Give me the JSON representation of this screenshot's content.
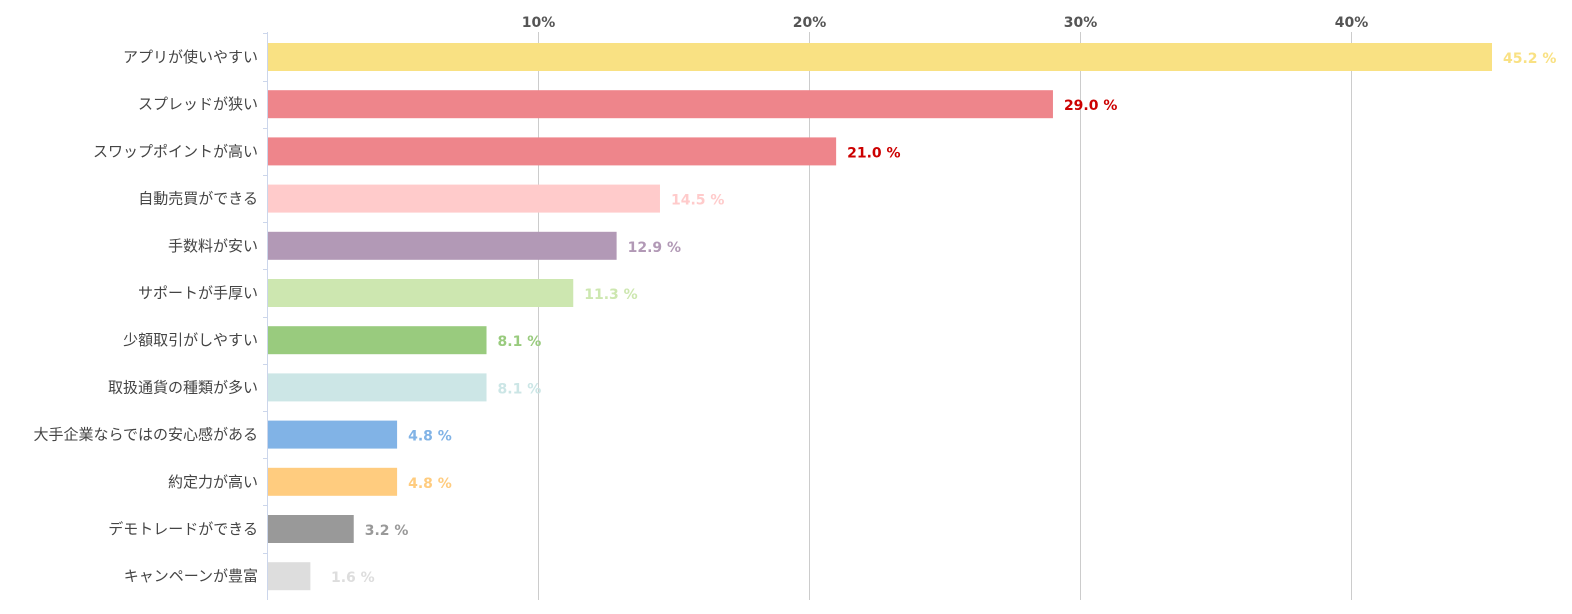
{
  "chart_data": {
    "type": "bar",
    "orientation": "horizontal",
    "title": "",
    "xlabel": "",
    "ylabel": "",
    "xlim": [
      0,
      45.2
    ],
    "grid": true,
    "x_ticks": [
      {
        "value": 10,
        "label": "10%"
      },
      {
        "value": 20,
        "label": "20%"
      },
      {
        "value": 30,
        "label": "30%"
      },
      {
        "value": 40,
        "label": "40%"
      }
    ],
    "categories": [
      "アプリが使いやすい",
      "スプレッドが狭い",
      "スワップポイントが高い",
      "自動売買ができる",
      "手数料が安い",
      "サポートが手厚い",
      "少額取引がしやすい",
      "取扱通貨の種類が多い",
      "大手企業ならではの安心感がある",
      "約定力が高い",
      "デモトレードができる",
      "キャンペーンが豊富"
    ],
    "values": [
      45.2,
      29.0,
      21.0,
      14.5,
      12.9,
      11.3,
      8.1,
      8.1,
      4.8,
      4.8,
      3.2,
      1.6
    ],
    "value_labels": [
      "45.2 %",
      "29.0 %",
      "21.0 %",
      "14.5 %",
      "12.9 %",
      "11.3 %",
      "8.1 %",
      "8.1 %",
      "4.8 %",
      "4.8 %",
      "3.2 %",
      "1.6 %"
    ],
    "bar_colors": [
      "#f9e183",
      "#ee858b",
      "#ee858b",
      "#ffcbcb",
      "#b299b6",
      "#cde7b0",
      "#99cb7e",
      "#cce6e6",
      "#81b3e6",
      "#ffcc7f",
      "#999999",
      "#dddddd"
    ],
    "label_colors": [
      "#f9e183",
      "#cc0000",
      "#cc0000",
      "#ffcbcb",
      "#b299b6",
      "#cde7b0",
      "#99cb7e",
      "#cce6e6",
      "#81b3e6",
      "#ffcc7f",
      "#999999",
      "#dddddd"
    ],
    "grid_color": "#cccccc",
    "axis_color": "#ccd6eb"
  }
}
